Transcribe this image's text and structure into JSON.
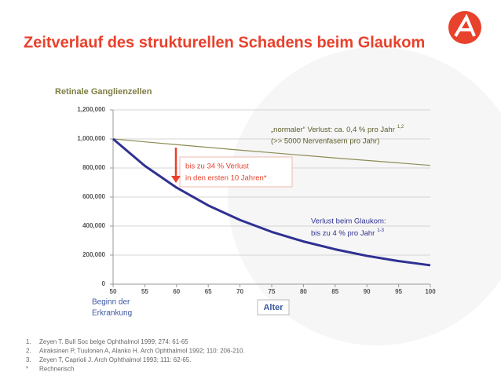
{
  "title": "Zeitverlauf des strukturellen Schadens beim Glaukom",
  "chart_data": {
    "type": "line",
    "y_label": "Retinale Ganglienzellen",
    "x_label": "Alter",
    "x": [
      50,
      55,
      60,
      65,
      70,
      75,
      80,
      85,
      90,
      95,
      100
    ],
    "series": [
      {
        "color": "#8c8c55",
        "values": [
          1000000,
          980000,
          961000,
          942000,
          923000,
          905000,
          887000,
          869000,
          852000,
          835000,
          818000
        ]
      },
      {
        "color": "#2e3192",
        "values": [
          1000000,
          815000,
          665000,
          542000,
          442000,
          360000,
          294000,
          240000,
          195000,
          159000,
          130000
        ]
      }
    ],
    "xlim": [
      50,
      100
    ],
    "xticks": [
      50,
      55,
      60,
      65,
      70,
      75,
      80,
      85,
      90,
      95,
      100
    ],
    "ylim": [
      0,
      1200000
    ],
    "yticks": [
      0,
      {
        "value": 200000,
        "label": "200,000"
      },
      {
        "value": 400000,
        "label": "400,000"
      },
      {
        "value": 600000,
        "label": "600,000"
      },
      {
        "value": 800000,
        "label": "800,000"
      },
      {
        "value": 1000000,
        "label": "1,000,000"
      },
      {
        "value": 1200000,
        "label": "1,200,000"
      }
    ],
    "grid": true,
    "annotations": {
      "normal": {
        "line1": "„normaler“ Verlust: ca. 0,4 % pro Jahr",
        "sup": "1,2",
        "line2": "(>> 5000 Nervenfasern pro Jahr)"
      },
      "loss": {
        "line1": "bis zu 34 % Verlust",
        "line2": "in den ersten 10 Jahren*"
      },
      "glaucoma": {
        "line1": "Verlust beim Glaukom:",
        "line2": "bis zu 4 % pro Jahr",
        "sup": "1-3"
      },
      "onset": {
        "line1": "Beginn der",
        "line2": "Erkrankung"
      }
    }
  },
  "footnotes": [
    {
      "marker": "1.",
      "text": "Zeyen T. Bull Soc belge Ophthalmol 1999; 274: 61-65"
    },
    {
      "marker": "2.",
      "text": "Airaksinen P, Tuulonen A, Alanko H. Arch Ophthalmol 1992; 110: 206-210."
    },
    {
      "marker": "3.",
      "text": "Zeyen T, Caprioli J. Arch Ophthalmol 1993; 111: 62-65."
    },
    {
      "marker": "*",
      "text": "Rechnerisch"
    }
  ]
}
